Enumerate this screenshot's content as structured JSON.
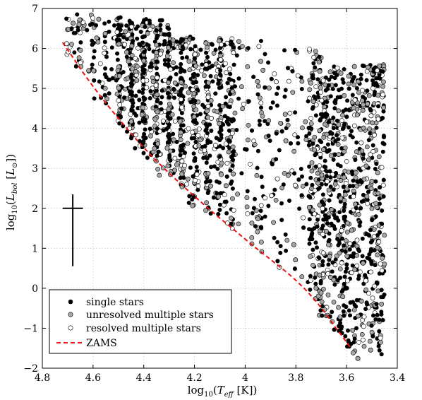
{
  "chart_data": {
    "type": "scatter",
    "xlabel_parts": [
      "log",
      "10",
      "(",
      "T",
      "eff",
      " [K])"
    ],
    "ylabel_parts": [
      "log",
      "10",
      "(",
      "L",
      "bol",
      " [",
      "L",
      "⊙",
      "])"
    ],
    "xlim": [
      4.8,
      3.4
    ],
    "ylim": [
      -2,
      7
    ],
    "x_ticks": [
      4.8,
      4.6,
      4.4,
      4.2,
      4.0,
      3.8,
      3.6,
      3.4
    ],
    "x_tick_labels": [
      "4.8",
      "4.6",
      "4.4",
      "4.2",
      "4",
      "3.8",
      "3.6",
      "3.4"
    ],
    "y_ticks": [
      -2,
      -1,
      0,
      1,
      2,
      3,
      4,
      5,
      6,
      7
    ],
    "y_tick_labels": [
      "−2",
      "−1",
      "0",
      "1",
      "2",
      "3",
      "4",
      "5",
      "6",
      "7"
    ],
    "grid": true,
    "legend_position": "lower-left",
    "series": [
      {
        "name": "single stars",
        "marker": "filled-circle",
        "color": "#000000"
      },
      {
        "name": "unresolved multiple stars",
        "marker": "filled-circle",
        "color": "#a6a6a6"
      },
      {
        "name": "resolved multiple stars",
        "marker": "open-circle",
        "color": "#ffffff"
      }
    ],
    "zams": {
      "name": "ZAMS",
      "color": "#ee1111",
      "x": [
        4.72,
        4.68,
        4.64,
        4.6,
        4.56,
        4.52,
        4.48,
        4.44,
        4.4,
        4.36,
        4.32,
        4.28,
        4.24,
        4.2,
        4.16,
        4.12,
        4.08,
        4.04,
        4.0,
        3.96,
        3.92,
        3.88,
        3.84,
        3.8,
        3.76,
        3.72,
        3.68,
        3.65,
        3.62,
        3.58
      ],
      "y": [
        6.15,
        5.78,
        5.4,
        5.05,
        4.72,
        4.4,
        4.1,
        3.8,
        3.52,
        3.25,
        3.0,
        2.76,
        2.53,
        2.3,
        2.08,
        1.86,
        1.65,
        1.44,
        1.23,
        1.02,
        0.82,
        0.62,
        0.42,
        0.2,
        -0.05,
        -0.33,
        -0.65,
        -0.93,
        -1.18,
        -1.52
      ]
    },
    "error_bar": {
      "x": 4.68,
      "y": 2.0,
      "x_err": 0.04,
      "y_minus": 1.45,
      "y_plus": 0.35
    }
  }
}
